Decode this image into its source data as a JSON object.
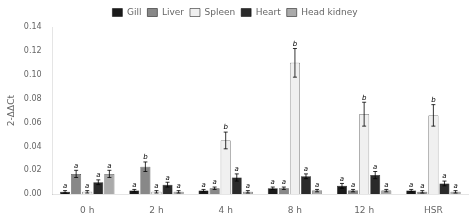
{
  "chart_data": {
    "type": "bar",
    "categories": [
      "0 h",
      "2 h",
      "4 h",
      "8 h",
      "12 h",
      "HSR"
    ],
    "series": [
      {
        "name": "Gill",
        "color": "#1a1a1a",
        "values": [
          0.002,
          0.003,
          0.003,
          0.005,
          0.007,
          0.003
        ],
        "errors": [
          0.001,
          0.001,
          0.001,
          0.001,
          0.002,
          0.001
        ],
        "sig_labels": [
          "a",
          "a",
          "a",
          "a",
          "a",
          "a"
        ]
      },
      {
        "name": "Liver",
        "color": "#888888",
        "values": [
          0.017,
          0.023,
          0.005,
          0.005,
          0.003,
          0.002
        ],
        "errors": [
          0.003,
          0.004,
          0.001,
          0.001,
          0.001,
          0.001
        ],
        "sig_labels": [
          "a",
          "b",
          "a",
          "a",
          "a",
          "a"
        ]
      },
      {
        "name": "Spleen",
        "color": "#f0f0f0",
        "values": [
          0.002,
          0.002,
          0.045,
          0.11,
          0.067,
          0.066
        ],
        "errors": [
          0.001,
          0.001,
          0.007,
          0.012,
          0.01,
          0.009
        ],
        "sig_labels": [
          "a",
          "a",
          "b",
          "b",
          "b",
          "b"
        ]
      },
      {
        "name": "Heart",
        "color": "#2a2a2a",
        "values": [
          0.01,
          0.008,
          0.014,
          0.015,
          0.016,
          0.009
        ],
        "errors": [
          0.002,
          0.002,
          0.003,
          0.002,
          0.003,
          0.002
        ],
        "sig_labels": [
          "a",
          "a",
          "a",
          "a",
          "a",
          "a"
        ]
      },
      {
        "name": "Head kidney",
        "color": "#aaaaaa",
        "values": [
          0.017,
          0.002,
          0.002,
          0.003,
          0.003,
          0.002
        ],
        "errors": [
          0.003,
          0.001,
          0.001,
          0.001,
          0.001,
          0.001
        ],
        "sig_labels": [
          "a",
          "a",
          "a",
          "a",
          "a",
          "a"
        ]
      }
    ],
    "ylabel": "2-ΔΔCt",
    "ylim": [
      0,
      0.14
    ],
    "yticks": [
      {
        "value": 0,
        "label": "0.00"
      },
      0.02,
      0.04,
      0.06,
      0.08,
      {
        "value": 0.1,
        "label": "0.10"
      },
      0.12,
      0.14
    ],
    "grid": false,
    "legend": "top"
  }
}
